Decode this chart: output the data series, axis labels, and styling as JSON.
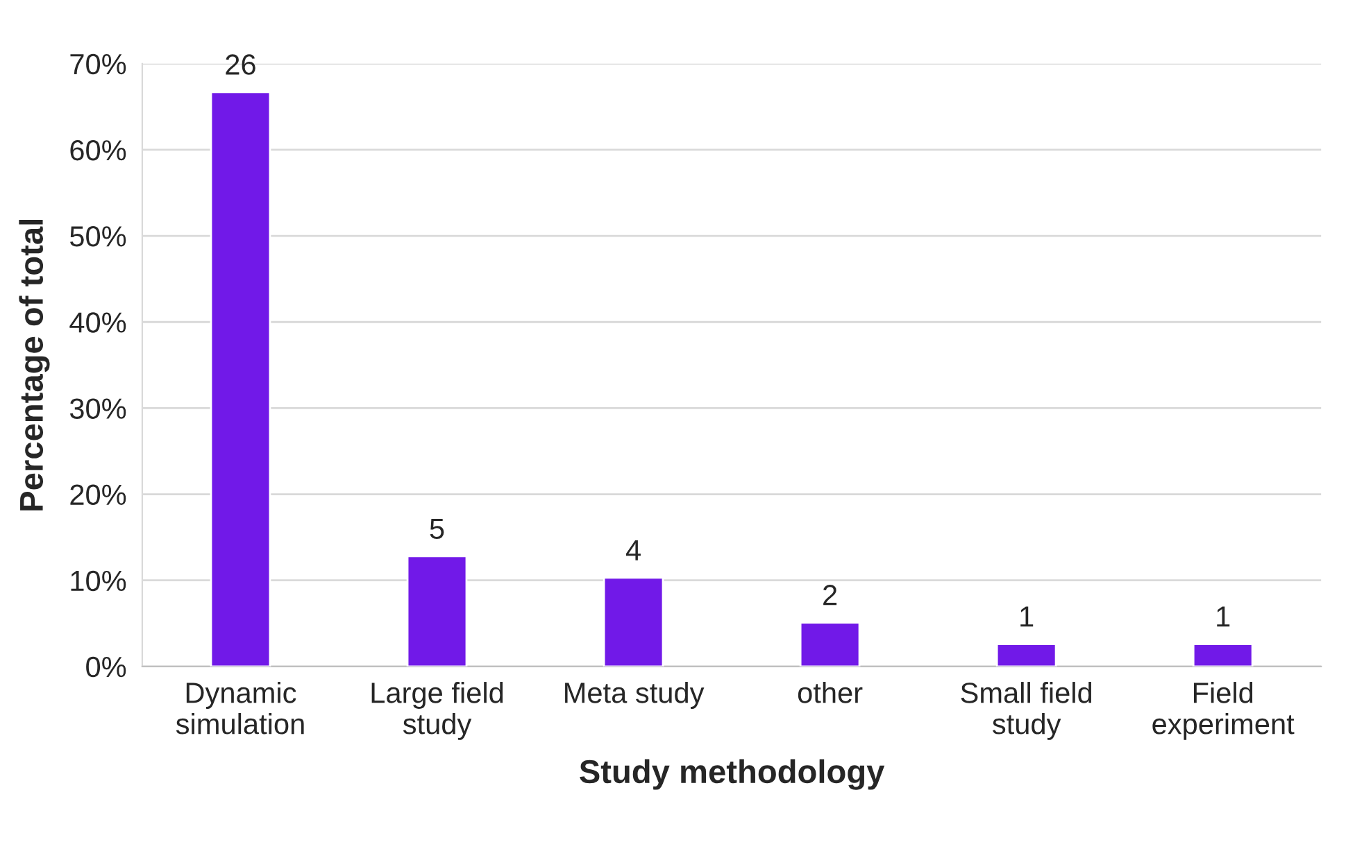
{
  "chart_data": {
    "type": "bar",
    "xlabel": "Study methodology",
    "ylabel": "Percentage of total",
    "categories": [
      "Dynamic\nsimulation",
      "Large field\nstudy",
      "Meta study",
      "other",
      "Small field\nstudy",
      "Field\nexperiment"
    ],
    "values": [
      66.7,
      12.8,
      10.3,
      5.1,
      2.6,
      2.6
    ],
    "annotations": [
      {
        "text": "26",
        "x": "Dynamic\nsimulation",
        "y": 66.7
      },
      {
        "text": "5",
        "x": "Large field\nstudy",
        "y": 12.8
      },
      {
        "text": "4",
        "x": "Meta study",
        "y": 10.3
      },
      {
        "text": "2",
        "x": "other",
        "y": 5.1
      },
      {
        "text": "1",
        "x": "Small field\nstudy",
        "y": 2.6
      },
      {
        "text": "1",
        "x": "Field\nexperiment",
        "y": 2.6
      }
    ],
    "color": "#7119e8",
    "ylim": [
      0,
      70
    ],
    "yticks": [
      {
        "value": 0,
        "label": "0%"
      },
      {
        "value": 10,
        "label": "10%"
      },
      {
        "value": 20,
        "label": "20%"
      },
      {
        "value": 30,
        "label": "30%"
      },
      {
        "value": 40,
        "label": "40%"
      },
      {
        "value": 50,
        "label": "50%"
      },
      {
        "value": 60,
        "label": "60%"
      },
      {
        "value": 70,
        "label": "70%"
      }
    ],
    "grid": "y"
  }
}
